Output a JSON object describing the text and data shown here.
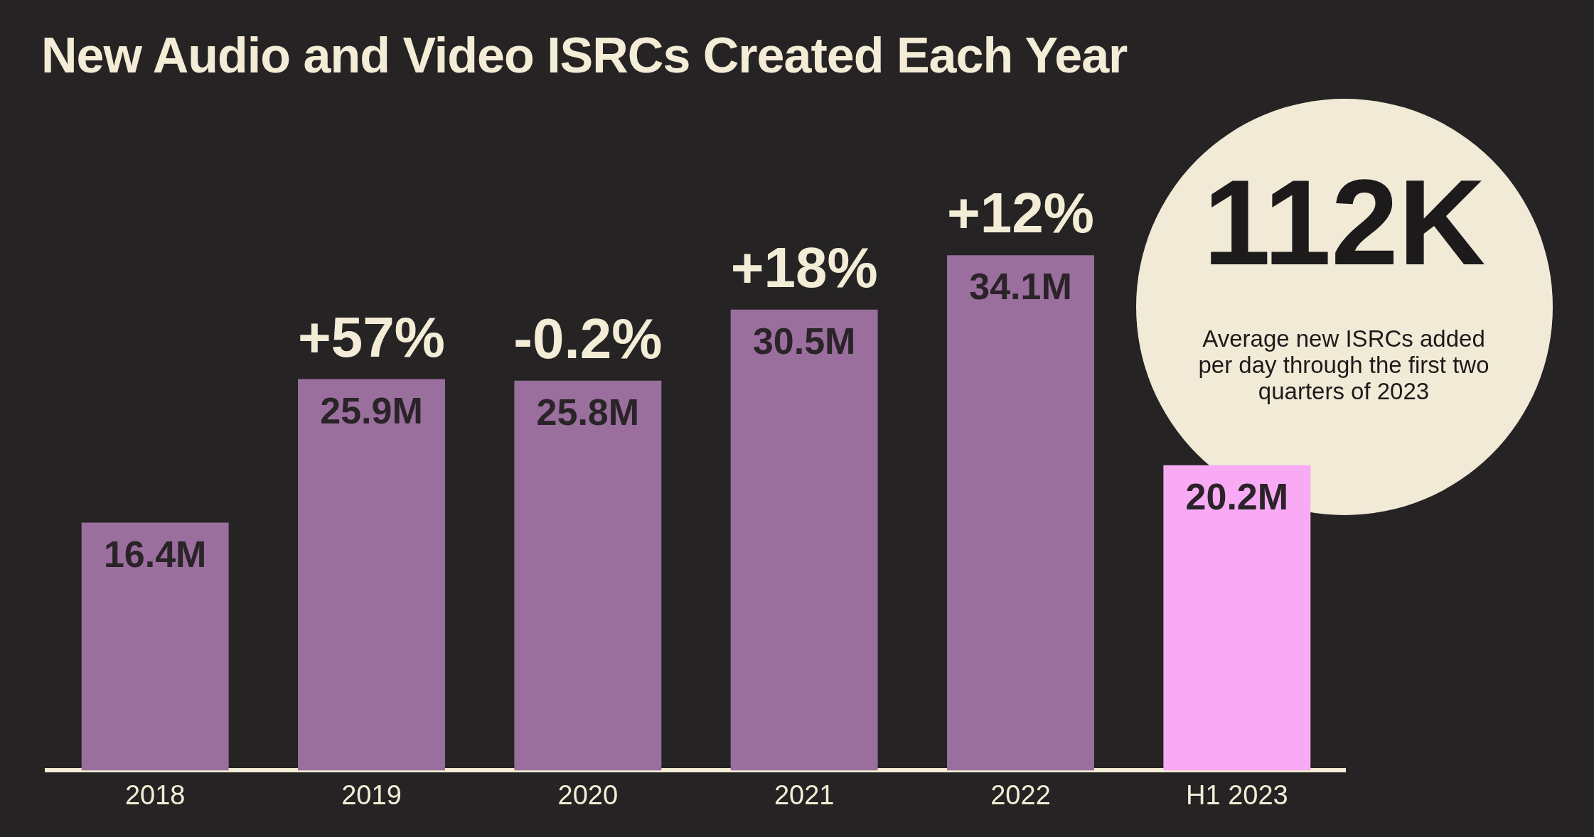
{
  "chart_data": {
    "type": "bar",
    "title": "New Audio and Video ISRCs Created Each Year",
    "categories": [
      "2018",
      "2019",
      "2020",
      "2021",
      "2022",
      "H1 2023"
    ],
    "values": [
      16.4,
      25.9,
      25.8,
      30.5,
      34.1,
      20.2
    ],
    "colors": [
      "#9a6f9e",
      "#9a6f9e",
      "#9a6f9e",
      "#9a6f9e",
      "#9a6f9e",
      "#f8aaf4"
    ],
    "value_labels": [
      "16.4M",
      "25.9M",
      "25.8M",
      "30.5M",
      "34.1M",
      "20.2M"
    ],
    "annotations": [
      {
        "text": "+57%",
        "x": "2019",
        "y": 25.9
      },
      {
        "text": "-0.2%",
        "x": "2020",
        "y": 25.8
      },
      {
        "text": "+18%",
        "x": "2021",
        "y": 30.5
      },
      {
        "text": "+12%",
        "x": "2022",
        "y": 34.1
      },
      "112K",
      "Average new ISRCs added per day through the first two quarters of 2023"
    ],
    "grid": false,
    "legend": false
  }
}
